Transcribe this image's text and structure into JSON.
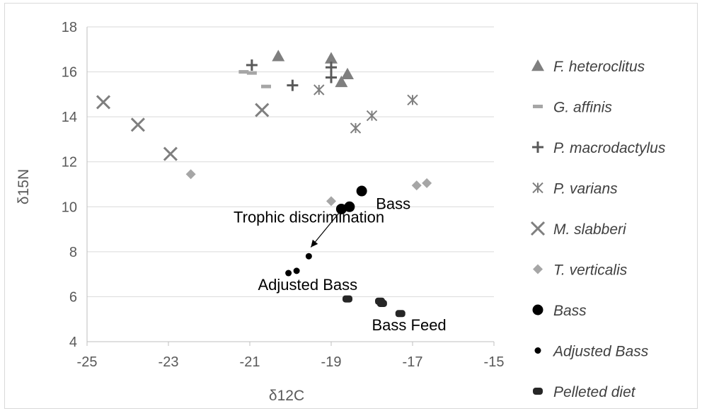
{
  "chart_data": {
    "type": "scatter",
    "xlabel": "δ12C",
    "ylabel": "δ15N",
    "xlim": [
      -25,
      -15
    ],
    "ylim": [
      4,
      18
    ],
    "x_ticks": [
      "-25",
      "-23",
      "-21",
      "-19",
      "-17",
      "-15"
    ],
    "y_ticks": [
      "4",
      "6",
      "8",
      "10",
      "12",
      "14",
      "16",
      "18"
    ],
    "grid": "horizontal",
    "legend_position": "right",
    "colors": {
      "light_gray": "#a6a6a6",
      "mid_gray": "#7f7f7f",
      "dark_gray": "#595959",
      "black": "#000000",
      "near_black": "#262626"
    },
    "series": [
      {
        "name": "F. heteroclitus",
        "marker": "triangle",
        "color": "#7f7f7f",
        "points": [
          [
            -20.3,
            16.7
          ],
          [
            -19.0,
            16.6
          ],
          [
            -18.6,
            15.9
          ],
          [
            -18.75,
            15.55
          ]
        ]
      },
      {
        "name": "G. affinis",
        "marker": "dash",
        "color": "#a6a6a6",
        "points": [
          [
            -21.15,
            16.0
          ],
          [
            -20.95,
            15.95
          ],
          [
            -20.6,
            15.35
          ]
        ]
      },
      {
        "name": "P. macrodactylus",
        "marker": "plus",
        "color": "#595959",
        "points": [
          [
            -20.95,
            16.3
          ],
          [
            -19.95,
            15.4
          ],
          [
            -19.0,
            16.2
          ],
          [
            -19.0,
            15.75
          ]
        ]
      },
      {
        "name": "P. varians",
        "marker": "asterisk",
        "color": "#7f7f7f",
        "points": [
          [
            -19.3,
            15.2
          ],
          [
            -18.4,
            13.5
          ],
          [
            -18.0,
            14.05
          ],
          [
            -17.0,
            14.75
          ]
        ]
      },
      {
        "name": "M. slabberi",
        "marker": "x",
        "color": "#7f7f7f",
        "points": [
          [
            -24.6,
            14.65
          ],
          [
            -23.75,
            13.65
          ],
          [
            -22.95,
            12.35
          ],
          [
            -20.7,
            14.3
          ]
        ]
      },
      {
        "name": "T. verticalis",
        "marker": "diamond",
        "color": "#a6a6a6",
        "points": [
          [
            -22.45,
            11.45
          ],
          [
            -19.0,
            10.25
          ],
          [
            -16.9,
            10.95
          ],
          [
            -16.65,
            11.05
          ]
        ]
      },
      {
        "name": "Bass",
        "marker": "circle-large",
        "color": "#000000",
        "points": [
          [
            -18.25,
            10.7
          ],
          [
            -18.75,
            9.9
          ],
          [
            -18.55,
            10.0
          ]
        ]
      },
      {
        "name": "Adjusted Bass",
        "marker": "circle-small",
        "color": "#000000",
        "points": [
          [
            -19.55,
            7.8
          ],
          [
            -20.05,
            7.05
          ],
          [
            -19.85,
            7.15
          ]
        ]
      },
      {
        "name": "Pelleted diet",
        "marker": "rounded-rect",
        "color": "#262626",
        "points": [
          [
            -18.6,
            5.9
          ],
          [
            -17.8,
            5.8
          ],
          [
            -17.75,
            5.7
          ],
          [
            -17.3,
            5.25
          ]
        ]
      }
    ],
    "annotations": [
      {
        "text": "Trophic discrimination",
        "x": -21.4,
        "y": 9.3
      },
      {
        "text": "Bass",
        "x": -17.9,
        "y": 9.9
      },
      {
        "text": "Adjusted Bass",
        "x": -20.8,
        "y": 6.3
      },
      {
        "text": "Bass Feed",
        "x": -18.0,
        "y": 4.5
      }
    ],
    "arrow": {
      "from": [
        -18.75,
        9.85
      ],
      "to": [
        -19.5,
        8.2
      ]
    }
  }
}
